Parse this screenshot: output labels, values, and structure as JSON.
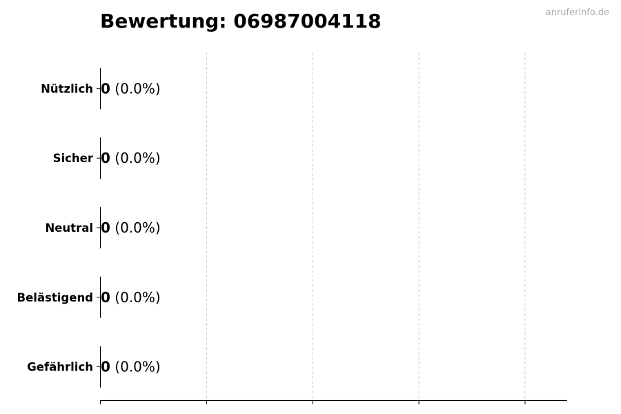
{
  "chart_data": {
    "type": "bar",
    "orientation": "horizontal",
    "title": "Bewertung: 06987004118",
    "watermark": "anruferinfo.de",
    "categories": [
      "Nützlich",
      "Sicher",
      "Neutral",
      "Belästigend",
      "Gefährlich"
    ],
    "values": [
      0,
      0,
      0,
      0,
      0
    ],
    "value_labels": [
      "0",
      "0",
      "0",
      "0",
      "0"
    ],
    "percent_labels": [
      "(0.0%)",
      "(0.0%)",
      "(0.0%)",
      "(0.0%)",
      "(0.0%)"
    ],
    "xlim": [
      0,
      4.4
    ],
    "xticks": [
      0,
      1,
      2,
      3,
      4
    ],
    "xtick_labels_shown": false,
    "grid": "vertical dashed",
    "colors": {
      "bar_edge": "#000000",
      "grid": "#cccccc",
      "watermark": "#aaaaaa"
    }
  }
}
